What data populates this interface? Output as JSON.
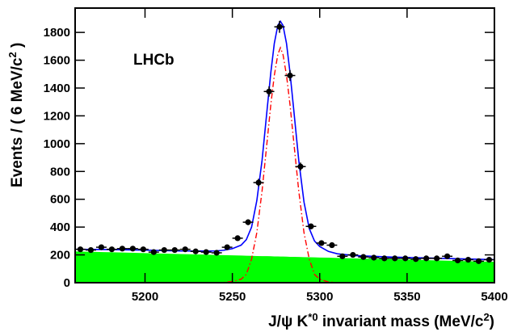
{
  "chart_data": {
    "type": "scatter",
    "x_label": [
      "J/ψ K",
      "*0",
      " invariant mass (MeV/c",
      "2",
      ")"
    ],
    "y_label": [
      "Events / ( 6 MeV/c",
      "2",
      " )"
    ],
    "annotation": "LHCb",
    "xlim": [
      5160,
      5400
    ],
    "ylim": [
      0,
      1975
    ],
    "xticks": [
      5200,
      5250,
      5300,
      5350,
      5400
    ],
    "yticks": [
      0,
      200,
      400,
      600,
      800,
      1000,
      1200,
      1400,
      1600,
      1800
    ],
    "color": "#000000",
    "x": [
      5163,
      5169,
      5175,
      5181,
      5187,
      5193,
      5199,
      5205,
      5211,
      5217,
      5223,
      5229,
      5235,
      5241,
      5247,
      5253,
      5259,
      5265,
      5271,
      5277,
      5283,
      5289,
      5295,
      5301,
      5307,
      5313,
      5319,
      5325,
      5331,
      5337,
      5343,
      5349,
      5355,
      5361,
      5367,
      5373,
      5379,
      5385,
      5391,
      5397
    ],
    "values": [
      240,
      235,
      255,
      240,
      245,
      245,
      240,
      220,
      235,
      235,
      240,
      225,
      220,
      215,
      255,
      320,
      435,
      720,
      1375,
      1840,
      1490,
      835,
      405,
      285,
      270,
      190,
      200,
      185,
      180,
      175,
      175,
      175,
      170,
      175,
      175,
      190,
      160,
      165,
      155,
      165
    ],
    "errors": [
      15,
      15,
      16,
      15,
      16,
      16,
      15,
      15,
      15,
      15,
      15,
      15,
      15,
      15,
      16,
      18,
      21,
      27,
      37,
      43,
      39,
      29,
      20,
      17,
      16,
      14,
      14,
      14,
      13,
      13,
      13,
      13,
      13,
      13,
      13,
      14,
      13,
      13,
      12,
      13
    ],
    "curves": [
      {
        "type": "area",
        "color": "#00ff00",
        "x": [
          5160,
          5180,
          5200,
          5220,
          5240,
          5245,
          5250,
          5255,
          5258,
          5261,
          5264,
          5267,
          5270,
          5272,
          5274,
          5276,
          5277.5,
          5279,
          5281,
          5283,
          5285,
          5288,
          5291,
          5294,
          5297,
          5300,
          5305,
          5310,
          5320,
          5340,
          5360,
          5380,
          5400
        ],
        "values": [
          225,
          219,
          213,
          206,
          200,
          198,
          197,
          195,
          194,
          193,
          192,
          191,
          191,
          190,
          189,
          189,
          188,
          188,
          187,
          186,
          186,
          185,
          184,
          183,
          182,
          181,
          180,
          178,
          175,
          169,
          163,
          156,
          150
        ]
      },
      {
        "type": "dashdot",
        "color": "#ff0000",
        "x": [
          5160,
          5180,
          5200,
          5220,
          5240,
          5245,
          5250,
          5255,
          5258,
          5261,
          5264,
          5267,
          5270,
          5272,
          5274,
          5276,
          5277.5,
          5279,
          5281,
          5283,
          5285,
          5288,
          5291,
          5294,
          5297,
          5300,
          5305,
          5310,
          5320,
          5340,
          5360,
          5380,
          5400
        ],
        "values": [
          0,
          0,
          0,
          0,
          0,
          2,
          8,
          25,
          60,
          170,
          360,
          660,
          1030,
          1280,
          1490,
          1640,
          1690,
          1640,
          1490,
          1280,
          1030,
          660,
          360,
          170,
          60,
          25,
          5,
          1,
          0,
          0,
          0,
          0,
          0
        ]
      },
      {
        "type": "line",
        "color": "#0000ff",
        "x": [
          5160,
          5180,
          5200,
          5220,
          5240,
          5245,
          5250,
          5255,
          5258,
          5261,
          5264,
          5267,
          5270,
          5272,
          5274,
          5276,
          5277.5,
          5279,
          5281,
          5283,
          5285,
          5288,
          5291,
          5294,
          5297,
          5300,
          5305,
          5310,
          5320,
          5340,
          5360,
          5380,
          5400
        ],
        "values": [
          240,
          238,
          234,
          228,
          228,
          233,
          245,
          270,
          310,
          400,
          590,
          880,
          1260,
          1510,
          1720,
          1850,
          1880,
          1850,
          1720,
          1510,
          1260,
          880,
          580,
          390,
          300,
          260,
          225,
          208,
          195,
          185,
          178,
          172,
          166
        ]
      }
    ]
  }
}
